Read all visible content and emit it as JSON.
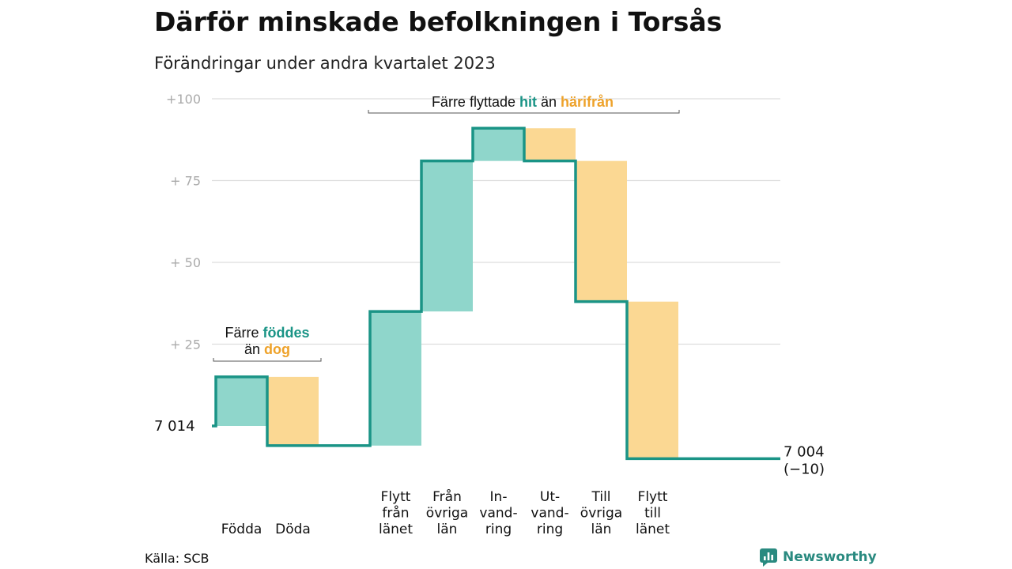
{
  "title": "Därför minskade befolkningen i Torsås",
  "subtitle": "Förändringar under andra kvartalet 2023",
  "source": "Källa: SCB",
  "brand": "Newsworthy",
  "colors": {
    "increase_fill": "#8fd6cb",
    "decrease_fill": "#fbd893",
    "line": "#1a9486",
    "teal_text": "#1a9486",
    "orange_text": "#eea22a",
    "grid": "#dddddd",
    "tick": "#aaaaaa"
  },
  "chart_data": {
    "type": "waterfall",
    "start": {
      "label": "7 014",
      "value": 0
    },
    "end": {
      "label": "7 004",
      "change_label": "(−10)",
      "value": -10
    },
    "y_ticks": [
      {
        "value": 100,
        "label": "+100"
      },
      {
        "value": 75,
        "label": "+  75"
      },
      {
        "value": 50,
        "label": "+  50"
      },
      {
        "value": 25,
        "label": "+  25"
      }
    ],
    "ylim": [
      -12,
      102
    ],
    "steps": [
      {
        "label": [
          "Födda"
        ],
        "change": 15,
        "kind": "increase"
      },
      {
        "label": [
          "Döda"
        ],
        "change": -21,
        "kind": "decrease"
      },
      {
        "label": [
          "Flytt",
          "från",
          "länet"
        ],
        "change": 41,
        "kind": "increase"
      },
      {
        "label": [
          "Från",
          "övriga",
          "län"
        ],
        "change": 46,
        "kind": "increase"
      },
      {
        "label": [
          "In-",
          "vand-",
          "ring"
        ],
        "change": 10,
        "kind": "increase"
      },
      {
        "label": [
          "Ut-",
          "vand-",
          "ring"
        ],
        "change": -10,
        "kind": "decrease"
      },
      {
        "label": [
          "Till",
          "övriga",
          "län"
        ],
        "change": -43,
        "kind": "decrease"
      },
      {
        "label": [
          "Flytt",
          "till",
          "länet"
        ],
        "change": -48,
        "kind": "decrease"
      }
    ],
    "annotations": [
      {
        "pre": "Färre ",
        "teal": "föddes",
        "pre2": "än ",
        "orange": "dog",
        "from_step": 0,
        "to_step": 1
      },
      {
        "pre": "Färre flyttade ",
        "teal": "hit",
        "pre2": "än ",
        "orange": "härifrån",
        "from_step": 2,
        "to_step": 7
      }
    ]
  }
}
